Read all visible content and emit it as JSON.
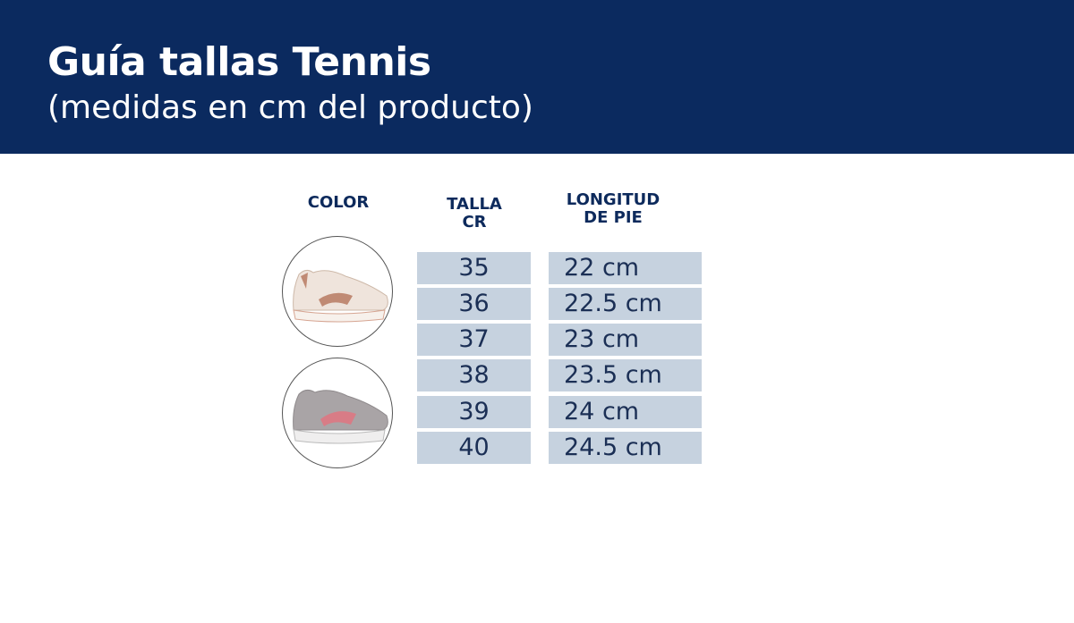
{
  "header": {
    "title": "Guía tallas Tennis",
    "subtitle": "(medidas en cm del producto)"
  },
  "table": {
    "headers": {
      "color": "COLOR",
      "size": "TALLA CR",
      "length": "LONGITUD DE PIE"
    },
    "colors": [
      {
        "name": "beige-shoe-icon",
        "body": "#efe4dc",
        "accent": "#c08a74"
      },
      {
        "name": "gray-shoe-icon",
        "body": "#a9a4a6",
        "accent": "#d87c86"
      }
    ],
    "rows": [
      {
        "size": "35",
        "length": "22 cm"
      },
      {
        "size": "36",
        "length": "22.5 cm"
      },
      {
        "size": "37",
        "length": "23 cm"
      },
      {
        "size": "38",
        "length": "23.5 cm"
      },
      {
        "size": "39",
        "length": "24 cm"
      },
      {
        "size": "40",
        "length": "24.5 cm"
      }
    ]
  },
  "colors": {
    "header_bg": "#0b2a5f",
    "cell_bg": "#c6d2df",
    "text": "#0d2a5c"
  }
}
